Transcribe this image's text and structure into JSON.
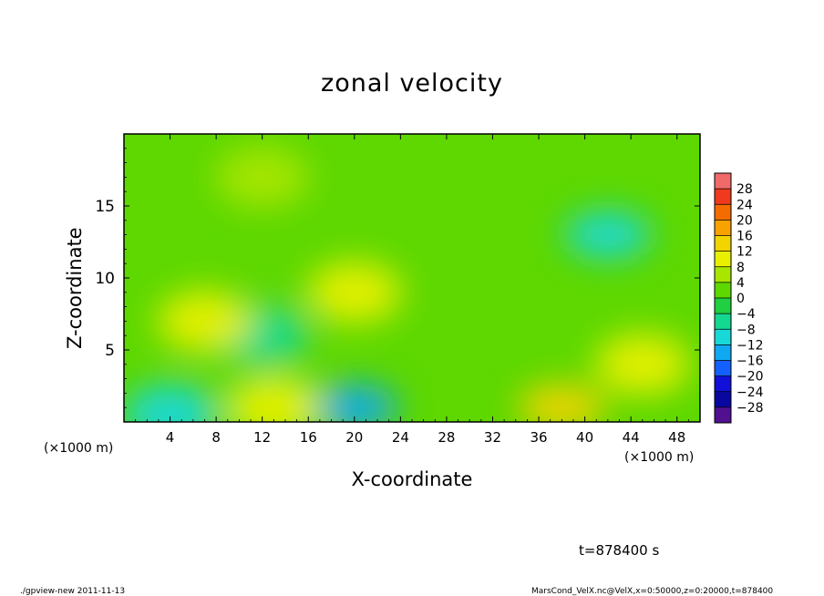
{
  "chart_data": {
    "type": "heatmap",
    "title": "zonal velocity",
    "xlabel": "X-coordinate",
    "ylabel": "Z-coordinate",
    "x_unit": "(×1000 m)",
    "xlim": [
      0,
      50
    ],
    "ylim": [
      0,
      20
    ],
    "x_ticks": [
      4,
      8,
      12,
      16,
      20,
      24,
      28,
      32,
      36,
      40,
      44,
      48
    ],
    "y_ticks": [
      5,
      10,
      15
    ],
    "colorbar": {
      "levels": [
        28,
        24,
        20,
        16,
        12,
        8,
        4,
        0,
        -4,
        -8,
        -12,
        -16,
        -20,
        -24,
        -28
      ],
      "colors": [
        "#f06a6a",
        "#f03a1e",
        "#f46c00",
        "#f7a200",
        "#f2d400",
        "#e8f000",
        "#a8e600",
        "#5ed800",
        "#20d040",
        "#14d890",
        "#18d8d8",
        "#10a8f0",
        "#1460ff",
        "#1010d8",
        "#0808a0",
        "#501090"
      ]
    },
    "features": [
      {
        "x": 42,
        "y": 13,
        "value": -12
      },
      {
        "x": 20,
        "y": 1,
        "value": -14
      },
      {
        "x": 4,
        "y": 0.5,
        "value": -10
      },
      {
        "x": 12,
        "y": 6,
        "value": -6
      },
      {
        "x": 38,
        "y": 1,
        "value": 14
      },
      {
        "x": 45,
        "y": 4,
        "value": 10
      },
      {
        "x": 20,
        "y": 9,
        "value": 8
      },
      {
        "x": 7,
        "y": 7,
        "value": 8
      },
      {
        "x": 12,
        "y": 17,
        "value": 6
      },
      {
        "x": 13,
        "y": 1,
        "value": 9
      }
    ]
  },
  "time_label": "t=878400 s",
  "footer_left": "./gpview-new  2011-11-13",
  "footer_right": "MarsCond_VelX.nc@VelX,x=0:50000,z=0:20000,t=878400"
}
